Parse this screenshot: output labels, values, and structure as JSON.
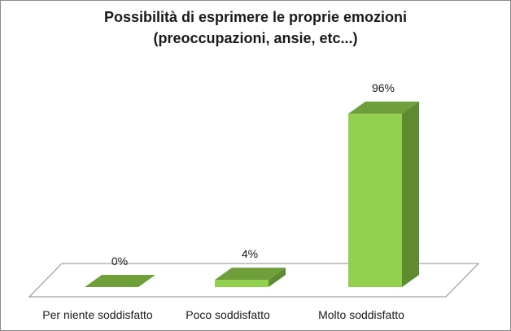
{
  "chart_data": {
    "type": "bar",
    "title_lines": [
      "Possibilità di esprimere le proprie emozioni",
      "(preoccupazioni, ansie, etc...)"
    ],
    "categories": [
      "Per niente soddisfatto",
      "Poco soddisfatto",
      "Molto soddisfatto"
    ],
    "values": [
      0,
      4,
      96
    ],
    "value_labels": [
      "0%",
      "4%",
      "96%"
    ],
    "unit": "%",
    "ylim": [
      0,
      100
    ],
    "grid": false,
    "legend": "none",
    "bar_front_color": "#92d050",
    "bar_side_color": "#5e8b2f",
    "bar_top_color": "#6f9f3b"
  }
}
